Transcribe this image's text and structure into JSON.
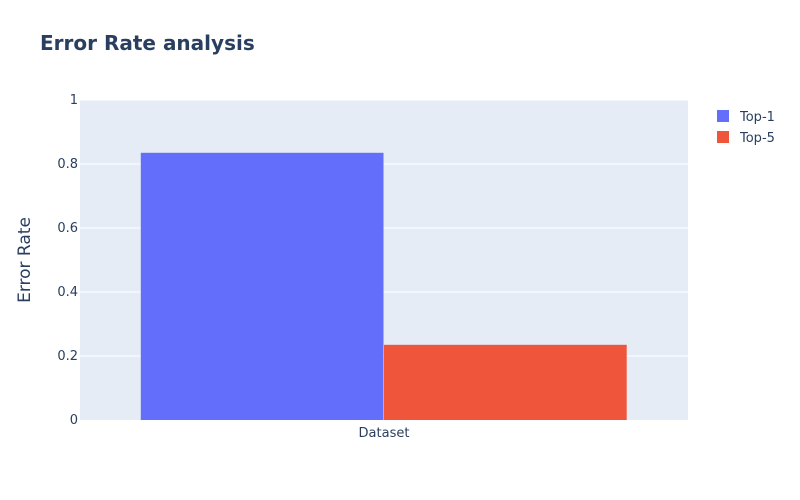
{
  "chart_data": {
    "type": "bar",
    "title": "Error Rate analysis",
    "xlabel": "",
    "ylabel": "Error Rate",
    "categories": [
      "Dataset"
    ],
    "series": [
      {
        "name": "Top-1",
        "values": [
          0.835
        ],
        "color": "#636efa"
      },
      {
        "name": "Top-5",
        "values": [
          0.235
        ],
        "color": "#ef553b"
      }
    ],
    "ylim": [
      0,
      1
    ],
    "yticks": [
      0,
      0.2,
      0.4,
      0.6,
      0.8,
      1
    ],
    "ytick_labels": [
      "0",
      "0.2",
      "0.4",
      "0.6",
      "0.8",
      "1"
    ],
    "grid": true,
    "legend": "top-right",
    "plot_background": "#e5ecf6",
    "grid_color": "#ffffff"
  }
}
